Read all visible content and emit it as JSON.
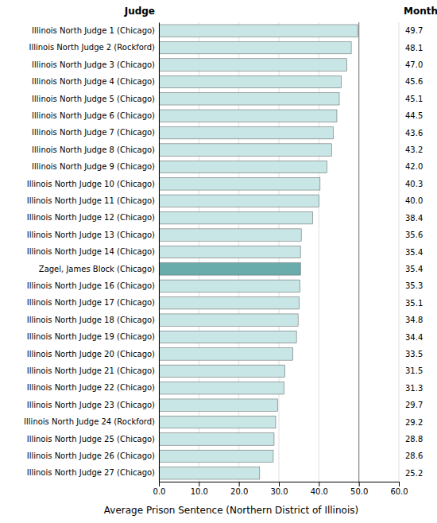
{
  "chart_data": {
    "type": "bar",
    "orientation": "horizontal",
    "categories": [
      "Illinois North Judge 1 (Chicago)",
      "Illinois North Judge 2 (Rockford)",
      "Illinois North Judge 3 (Chicago)",
      "Illinois North Judge 4 (Chicago)",
      "Illinois North Judge 5 (Chicago)",
      "Illinois North Judge 6 (Chicago)",
      "Illinois North Judge 7 (Chicago)",
      "Illinois North Judge 8 (Chicago)",
      "Illinois North Judge 9 (Chicago)",
      "Illinois North Judge 10 (Chicago)",
      "Illinois North Judge 11 (Chicago)",
      "Illinois North Judge 12 (Chicago)",
      "Illinois North Judge 13 (Chicago)",
      "Illinois North Judge 14 (Chicago)",
      "Zagel, James Block (Chicago)",
      "Illinois North Judge 16 (Chicago)",
      "Illinois North Judge 17 (Chicago)",
      "Illinois North Judge 18 (Chicago)",
      "Illinois North Judge 19 (Chicago)",
      "Illinois North Judge 20 (Chicago)",
      "Illinois North Judge 21 (Chicago)",
      "Illinois North Judge 22 (Chicago)",
      "Illinois North Judge 23 (Chicago)",
      "Illinois North Judge 24 (Rockford)",
      "Illinois North Judge 25 (Chicago)",
      "Illinois North Judge 26 (Chicago)",
      "Illinois North Judge 27 (Chicago)"
    ],
    "values": [
      49.7,
      48.1,
      47.0,
      45.6,
      45.1,
      44.5,
      43.6,
      43.2,
      42.0,
      40.3,
      40.0,
      38.4,
      35.6,
      35.4,
      35.4,
      35.3,
      35.1,
      34.8,
      34.4,
      33.5,
      31.5,
      31.3,
      29.7,
      29.2,
      28.8,
      28.6,
      25.2
    ],
    "value_labels": [
      "49.7",
      "48.1",
      "47.0",
      "45.6",
      "45.1",
      "44.5",
      "43.6",
      "43.2",
      "42.0",
      "40.3",
      "40.0",
      "38.4",
      "35.6",
      "35.4",
      "35.4",
      "35.3",
      "35.1",
      "34.8",
      "34.4",
      "33.5",
      "31.5",
      "31.3",
      "29.7",
      "29.2",
      "28.8",
      "28.6",
      "25.2"
    ],
    "data_labels": true,
    "colors": [
      "#c8e6e6",
      "#c8e6e6",
      "#c8e6e6",
      "#c8e6e6",
      "#c8e6e6",
      "#c8e6e6",
      "#c8e6e6",
      "#c8e6e6",
      "#c8e6e6",
      "#c8e6e6",
      "#c8e6e6",
      "#c8e6e6",
      "#c8e6e6",
      "#c8e6e6",
      "#6aacac",
      "#c8e6e6",
      "#c8e6e6",
      "#c8e6e6",
      "#c8e6e6",
      "#c8e6e6",
      "#c8e6e6",
      "#c8e6e6",
      "#c8e6e6",
      "#c8e6e6",
      "#c8e6e6",
      "#c8e6e6",
      "#c8e6e6"
    ],
    "xlabel": "Average Prison Sentence (Northern District of Illinois)",
    "ylabel": "Judge",
    "annotations": [
      "Months"
    ],
    "xlim": [
      0,
      60
    ],
    "xticks": [
      {
        "value": 0,
        "label": "0.0"
      },
      {
        "value": 10,
        "label": "10.0"
      },
      {
        "value": 20,
        "label": "20.0"
      },
      {
        "value": 30,
        "label": "30.0"
      },
      {
        "value": 40,
        "label": "40.0"
      },
      {
        "value": 50,
        "label": "50.0"
      },
      {
        "value": 60,
        "label": "60.0"
      }
    ],
    "reference_line": 50,
    "grid": true
  }
}
